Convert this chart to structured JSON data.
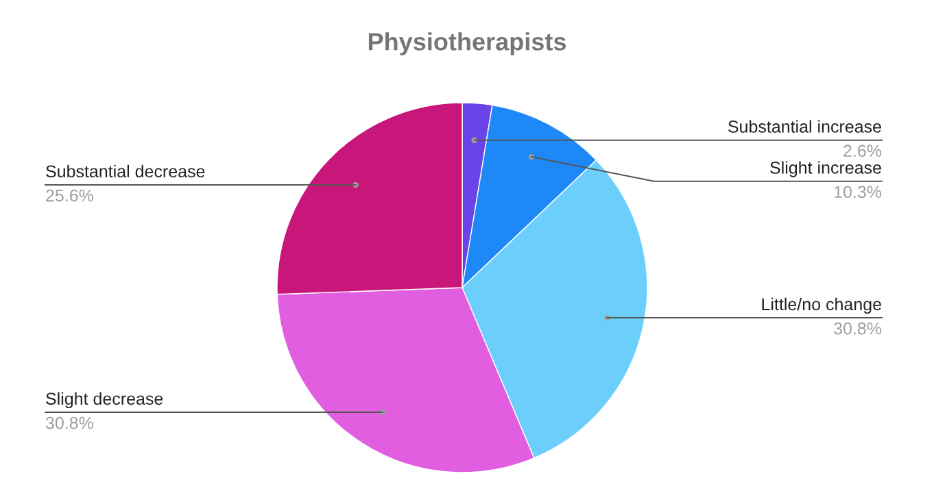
{
  "chart_data": {
    "type": "pie",
    "title": "Physiotherapists",
    "categories": [
      "Substantial increase",
      "Slight increase",
      "Little/no change",
      "Slight decrease",
      "Substantial decrease"
    ],
    "values": [
      2.6,
      10.3,
      30.8,
      30.8,
      25.6
    ],
    "value_labels": [
      "2.6%",
      "10.3%",
      "30.8%",
      "30.8%",
      "25.6%"
    ],
    "colors": [
      "#6a44e8",
      "#1e88f7",
      "#6ccffb",
      "#e05edf",
      "#c8167a"
    ],
    "legend": false
  }
}
